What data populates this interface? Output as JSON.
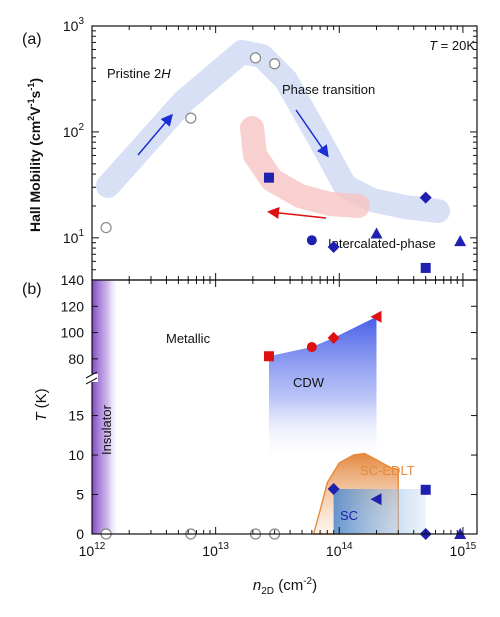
{
  "chart_data": [
    {
      "panel_label": "(a)",
      "type": "scatter",
      "x_scale": "log",
      "y_scale": "log",
      "xlim": [
        1000000000000.0,
        1300000000000000.0
      ],
      "ylim": [
        4,
        1000
      ],
      "ylabel_main": "Hall Mobility (cm",
      "ylabel_sup1": "2",
      "ylabel_mid": "V",
      "ylabel_sup2": "-1",
      "ylabel_s": "s",
      "ylabel_sup3": "-1",
      "ylabel_end": ")",
      "y_ticks": [
        {
          "value": 10,
          "base": "10",
          "exp": "1"
        },
        {
          "value": 100,
          "base": "10",
          "exp": "2"
        },
        {
          "value": 1000,
          "base": "10",
          "exp": "3"
        }
      ],
      "annotations": {
        "temperature_T": "T",
        "temperature_rest": " = 20K",
        "pristine_text": "Pristine 2",
        "pristine_italic": "H",
        "phase_transition": "Phase transition",
        "intercalated": "Intercalated-phase"
      },
      "series": [
        {
          "marker": "open-circle",
          "points": [
            [
              1300000000000.0,
              12.5
            ],
            [
              6300000000000.0,
              135
            ],
            [
              21000000000000.0,
              500
            ],
            [
              30000000000000.0,
              440
            ]
          ]
        },
        {
          "marker": "square",
          "points": [
            [
              27000000000000.0,
              37
            ],
            [
              500000000000000.0,
              5.2
            ]
          ]
        },
        {
          "marker": "circle",
          "points": [
            [
              60000000000000.0,
              9.5
            ]
          ]
        },
        {
          "marker": "diamond",
          "points": [
            [
              90000000000000.0,
              8.2
            ],
            [
              500000000000000.0,
              24
            ]
          ]
        },
        {
          "marker": "triangle",
          "points": [
            [
              200000000000000.0,
              11
            ],
            [
              950000000000000.0,
              9.3
            ]
          ]
        }
      ],
      "colors": {
        "marker_blue": "#1f1fb0",
        "open_marker": "#888888",
        "blue_band": "#c9d6f2",
        "pink_band": "#f7c4c4",
        "lavender_band": "#c8c8ec",
        "arrow_blue": "#1a2fd6",
        "arrow_red": "#e01010"
      }
    },
    {
      "panel_label": "(b)",
      "type": "scatter",
      "x_scale": "log",
      "xlim": [
        1000000000000.0,
        1300000000000000.0
      ],
      "ylim_lower": [
        0,
        19
      ],
      "ylim_upper": [
        70,
        140
      ],
      "xlabel_main": "n",
      "xlabel_sub": "2D",
      "xlabel_unit": " (cm",
      "xlabel_sup": "-2",
      "xlabel_end": ")",
      "ylabel_italic": "T",
      "ylabel_unit": " (K)",
      "x_ticks": [
        {
          "value": 1000000000000.0,
          "base": "10",
          "exp": "12"
        },
        {
          "value": 10000000000000.0,
          "base": "10",
          "exp": "13"
        },
        {
          "value": 100000000000000.0,
          "base": "10",
          "exp": "14"
        },
        {
          "value": 1000000000000000.0,
          "base": "10",
          "exp": "15"
        }
      ],
      "y_ticks_lower": [
        "0",
        "5",
        "10",
        "15"
      ],
      "y_ticks_upper": [
        "80",
        "100",
        "120",
        "140"
      ],
      "regions": {
        "insulator": "Insulator",
        "metallic": "Metallic",
        "cdw": "CDW",
        "sc": "SC",
        "sc_edlt": "SC-EDLT"
      },
      "cdw_points": [
        {
          "marker": "square",
          "x": 27000000000000.0,
          "T": 82
        },
        {
          "marker": "circle",
          "x": 60000000000000.0,
          "T": 89
        },
        {
          "marker": "diamond",
          "x": 90000000000000.0,
          "T": 96
        },
        {
          "marker": "triangle",
          "x": 200000000000000.0,
          "T": 112
        }
      ],
      "tc_points": [
        {
          "marker": "diamond",
          "x": 90000000000000.0,
          "T": 5.7
        },
        {
          "marker": "triangle",
          "x": 200000000000000.0,
          "T": 4.4
        },
        {
          "marker": "square",
          "x": 500000000000000.0,
          "T": 5.6
        },
        {
          "marker": "diamond",
          "x": 500000000000000.0,
          "T": 0
        },
        {
          "marker": "triangle",
          "x": 950000000000000.0,
          "T": 0
        }
      ],
      "zero_points": [
        1300000000000.0,
        6300000000000.0,
        21000000000000.0,
        30000000000000.0
      ],
      "sc_edlt_dome": [
        [
          62000000000000.0,
          0
        ],
        [
          70000000000000.0,
          3
        ],
        [
          80000000000000.0,
          6.5
        ],
        [
          100000000000000.0,
          9
        ],
        [
          130000000000000.0,
          10
        ],
        [
          160000000000000.0,
          10.2
        ],
        [
          200000000000000.0,
          9.4
        ],
        [
          260000000000000.0,
          8.4
        ],
        [
          300000000000000.0,
          8.2
        ]
      ],
      "colors": {
        "cdw_marker": "#e01010",
        "cdw_fill": "#3d55e6",
        "sc_fill": "#5f9ad6",
        "insulator_fill": "#7a3fc0",
        "sc_edlt": "#e88a3a",
        "marker_blue": "#1f1fb0"
      }
    }
  ]
}
